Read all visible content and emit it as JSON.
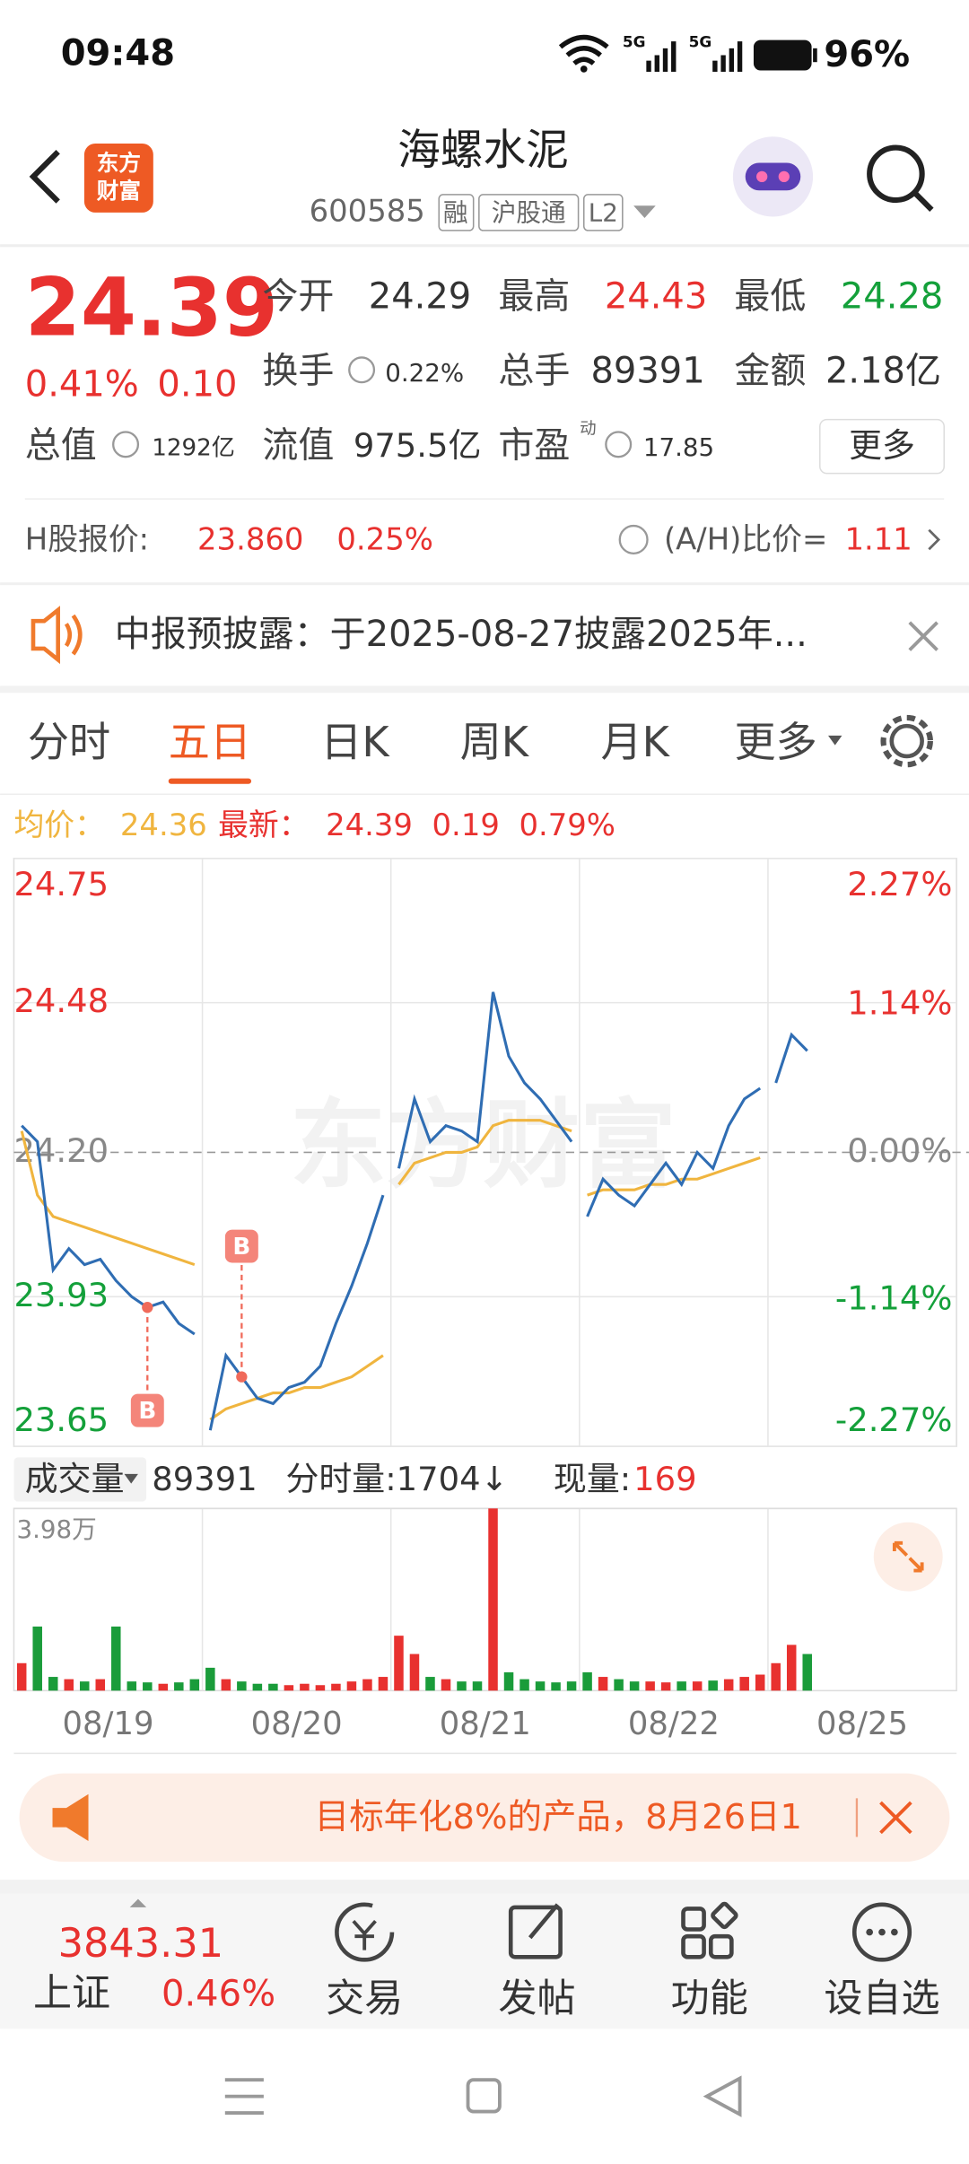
{
  "status_bar": {
    "time": "09:48",
    "network": [
      "5G",
      "5G"
    ],
    "battery": "96%"
  },
  "header": {
    "logo": "东方财富",
    "title": "海螺水泥",
    "code": "600585",
    "tags": [
      "融",
      "沪股通",
      "L2"
    ]
  },
  "quote": {
    "price": "24.39",
    "change_pct": "0.41%",
    "change": "0.10",
    "fields": [
      {
        "label": "今开",
        "value": "24.29"
      },
      {
        "label": "最高",
        "value": "24.43"
      },
      {
        "label": "最低",
        "value": "24.28"
      },
      {
        "label": "换手",
        "value": "0.22%"
      },
      {
        "label": "总手",
        "value": "89391"
      },
      {
        "label": "金额",
        "value": "2.18亿"
      },
      {
        "label": "总值",
        "value": "1292亿"
      },
      {
        "label": "流值",
        "value": "975.5亿"
      },
      {
        "label": "市盈",
        "sup": "动",
        "value": "17.85"
      }
    ],
    "more": "更多"
  },
  "h_share": {
    "label": "H股报价:",
    "price": "23.860",
    "change_pct": "0.25%",
    "ratio_label": "(A/H)比价=",
    "ratio": "1.11"
  },
  "notice": "中报预披露：于2025-08-27披露2025年...",
  "tabs": {
    "items": [
      "分时",
      "五日",
      "日K",
      "周K",
      "月K",
      "更多"
    ],
    "active": "五日"
  },
  "chart_info": {
    "avg_label": "均价：",
    "avg": "24.36",
    "latest_label": "最新：",
    "latest": "24.39",
    "change": "0.19",
    "change_pct": "0.79%"
  },
  "chart_data": {
    "type": "line",
    "watermark": "东方财富",
    "categories": [
      "08/19",
      "08/20",
      "08/21",
      "08/22",
      "08/25"
    ],
    "price": [
      [
        24.25,
        24.22,
        23.98,
        24.02,
        23.99,
        24.0,
        23.96,
        23.93,
        23.91,
        23.92,
        23.88,
        23.86
      ],
      [
        23.68,
        23.82,
        23.78,
        23.74,
        23.73,
        23.76,
        23.77,
        23.8,
        23.88,
        23.95,
        24.03,
        24.12
      ],
      [
        24.17,
        24.3,
        24.22,
        24.25,
        24.24,
        24.22,
        24.5,
        24.38,
        24.33,
        24.3,
        24.26,
        24.22
      ],
      [
        24.08,
        24.15,
        24.12,
        24.1,
        24.14,
        24.18,
        24.14,
        24.2,
        24.17,
        24.25,
        24.3,
        24.32
      ],
      [
        24.33,
        24.42,
        24.39
      ]
    ],
    "avg": [
      [
        24.24,
        24.12,
        24.08,
        24.07,
        24.06,
        24.05,
        24.04,
        24.03,
        24.02,
        24.01,
        24.0,
        23.99
      ],
      [
        23.7,
        23.72,
        23.73,
        23.74,
        23.75,
        23.75,
        23.76,
        23.76,
        23.77,
        23.78,
        23.8,
        23.82
      ],
      [
        24.14,
        24.18,
        24.19,
        24.2,
        24.2,
        24.21,
        24.25,
        24.26,
        24.26,
        24.26,
        24.25,
        24.24
      ],
      [
        24.12,
        24.13,
        24.13,
        24.13,
        24.14,
        24.14,
        24.15,
        24.15,
        24.16,
        24.17,
        24.18,
        24.19
      ]
    ],
    "volume": [
      [
        6000,
        14000,
        3000,
        2500,
        2000,
        2500,
        14000,
        2000,
        1800,
        1500,
        1800,
        2500
      ],
      [
        5000,
        2500,
        2000,
        1500,
        1500,
        1200,
        1500,
        1200,
        1500,
        2000,
        2500,
        3000
      ],
      [
        12000,
        8000,
        3000,
        2500,
        2000,
        2000,
        39800,
        4000,
        2500,
        2000,
        1800,
        2000
      ],
      [
        4000,
        3000,
        2500,
        2000,
        2000,
        1800,
        2000,
        2000,
        2200,
        2500,
        3000,
        3500
      ],
      [
        6000,
        10000,
        8000
      ]
    ],
    "price_color": "#2f6db3",
    "avg_color": "#f0b53f",
    "up_color": "#e8312f",
    "down_color": "#1a9c3a",
    "ylim": [
      23.65,
      24.75
    ],
    "yticks": [
      24.75,
      24.48,
      {
        "value": 24.2,
        "label": "24.20"
      },
      23.93,
      23.65
    ],
    "y2lim": [
      -2.27,
      2.27
    ],
    "y2ticks": [
      {
        "value": 2.27,
        "label": "2.27%"
      },
      {
        "value": 1.14,
        "label": "1.14%"
      },
      {
        "value": 0,
        "label": "0.00%"
      },
      {
        "value": -1.14,
        "label": "-1.14%"
      },
      {
        "value": -2.27,
        "label": "-2.27%"
      }
    ],
    "volume_ylim": [
      0,
      39800
    ],
    "volume_yticks": [
      {
        "value": 39800,
        "label": "3.98万"
      }
    ],
    "markers": [
      {
        "label": "B",
        "day": "08/19",
        "value": 23.91
      },
      {
        "label": "B",
        "day": "08/20",
        "value": 23.78
      }
    ],
    "grid": true
  },
  "volume_header": {
    "label": "成交量",
    "total": "89391",
    "tick": "分时量:1704↓",
    "current_label": "现量:",
    "current": "169"
  },
  "ad": "目标年化8%的产品，8月26日1",
  "bottom_nav": {
    "index_value": "3843.31",
    "index_name": "上证",
    "index_pct": "0.46%",
    "items": [
      "交易",
      "发帖",
      "功能",
      "设自选"
    ]
  }
}
